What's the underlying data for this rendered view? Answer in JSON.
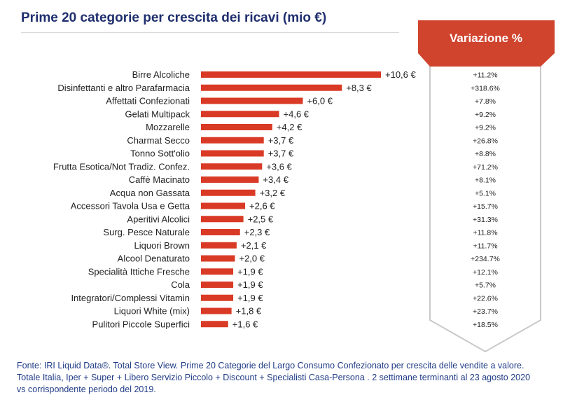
{
  "title": "Prime 20 categorie per crescita dei ricavi (mio €)",
  "variation_header": "Variazione %",
  "source_text": "Fonte: IRI Liquid Data®. Total Store View. Prime 20 Categorie del Largo Consumo Confezionato per crescita delle vendite a valore. Totale Italia, Iper + Super + Libero Servizio Piccolo + Discount + Specialisti Casa-Persona . 2 settimane terminanti al 23 agosto 2020 vs corrispondente periodo del 2019.",
  "colors": {
    "bar": "#d93a26",
    "header": "#d0442e",
    "title": "#1f2f6e",
    "source": "#1f3b86"
  },
  "chart_data": {
    "type": "bar",
    "orientation": "horizontal",
    "title": "Prime 20 categorie per crescita dei ricavi (mio €)",
    "categories": [
      "Birre Alcoliche",
      "Disinfettanti e altro Parafarmacia",
      "Affettati Confezionati",
      "Gelati Multipack",
      "Mozzarelle",
      "Charmat Secco",
      "Tonno Sott'olio",
      "Frutta Esotica/Not Tradiz. Confez.",
      "Caffè Macinato",
      "Acqua non Gassata",
      "Accessori Tavola Usa e Getta",
      "Aperitivi Alcolici",
      "Surg. Pesce Naturale",
      "Liquori Brown",
      "Alcool Denaturato",
      "Specialità Ittiche Fresche",
      "Cola",
      "Integratori/Complessi Vitamin",
      "Liquori White (mix)",
      "Pulitori Piccole Superfici"
    ],
    "values": [
      10.6,
      8.3,
      6.0,
      4.6,
      4.2,
      3.7,
      3.7,
      3.6,
      3.4,
      3.2,
      2.6,
      2.5,
      2.3,
      2.1,
      2.0,
      1.9,
      1.9,
      1.9,
      1.8,
      1.6
    ],
    "value_labels": [
      "+10,6 €",
      "+8,3 €",
      "+6,0 €",
      "+4,6 €",
      "+4,2 €",
      "+3,7 €",
      "+3,7 €",
      "+3,6 €",
      "+3,4 €",
      "+3,2 €",
      "+2,6 €",
      "+2,5 €",
      "+2,3 €",
      "+2,1 €",
      "+2,0 €",
      "+1,9 €",
      "+1,9 €",
      "+1,9 €",
      "+1,8 €",
      "+1,6 €"
    ],
    "variazione": [
      "+11.2%",
      "+318.6%",
      "+7.8%",
      "+9.2%",
      "+9.2%",
      "+26.8%",
      "+8.8%",
      "+71.2%",
      "+8.1%",
      "+5.1%",
      "+15.7%",
      "+31.3%",
      "+11.8%",
      "+11.7%",
      "+234.7%",
      "+12.1%",
      "+5.7%",
      "+22.6%",
      "+23.7%",
      "+18.5%"
    ],
    "xlim": [
      0,
      10.6
    ],
    "grid": false,
    "legend": "none"
  }
}
